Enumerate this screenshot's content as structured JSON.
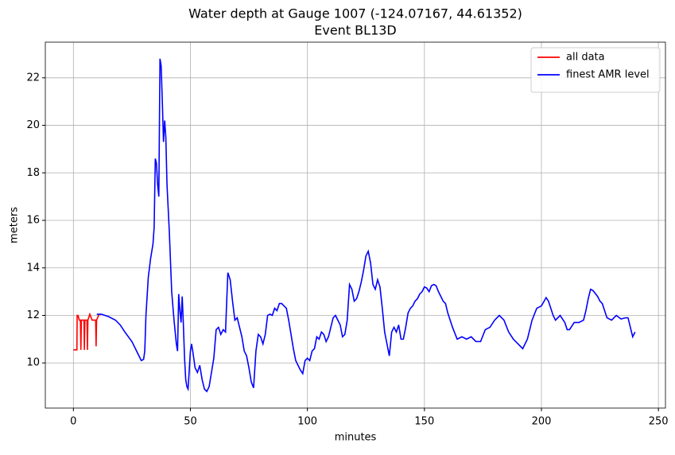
{
  "chart_data": {
    "type": "line",
    "title": "Water depth at Gauge 1007 (-124.07167, 44.61352)",
    "subtitle": "Event BL13D",
    "x_label": "minutes",
    "y_label": "meters",
    "xlim": [
      -12,
      253
    ],
    "ylim": [
      8.1,
      23.5
    ],
    "xticks": [
      0,
      50,
      100,
      150,
      200,
      250
    ],
    "yticks": [
      10,
      12,
      14,
      16,
      18,
      20,
      22
    ],
    "grid": true,
    "legend": "upper right",
    "series": [
      {
        "name": "all data",
        "color": "#ff0000",
        "x": [
          0,
          1,
          1.5,
          1.6,
          2,
          2.5,
          3,
          3.2,
          3.4,
          4.5,
          4.7,
          4.9,
          5.8,
          6,
          6.2,
          7,
          8,
          9.5,
          9.7,
          9.9,
          11
        ],
        "values": [
          10.55,
          10.55,
          10.55,
          12.0,
          12.0,
          11.8,
          11.8,
          10.55,
          11.8,
          11.8,
          10.55,
          11.8,
          11.8,
          10.55,
          11.8,
          12.05,
          11.8,
          11.8,
          10.7,
          11.8,
          12.05
        ]
      },
      {
        "name": "finest AMR level",
        "color": "#0000ff",
        "x": [
          10,
          12,
          15,
          18,
          20,
          22,
          25,
          28,
          29,
          30,
          30.5,
          31,
          32,
          33,
          34,
          34.5,
          35,
          35.5,
          36,
          36.5,
          37,
          37.5,
          38,
          38.5,
          39,
          39.5,
          40,
          41,
          42,
          43,
          44,
          44.5,
          45,
          45.5,
          46,
          46.5,
          47,
          47.5,
          48,
          48.5,
          49,
          50,
          50.5,
          51,
          52,
          53,
          54,
          55,
          56,
          57,
          58,
          59,
          60,
          61,
          62,
          63,
          64,
          65,
          66,
          67,
          68,
          69,
          70,
          71,
          72,
          73,
          74,
          75,
          76,
          77,
          78,
          79,
          80,
          81,
          82,
          83,
          84,
          85,
          86,
          87,
          88,
          89,
          90,
          91,
          92,
          93,
          94,
          95,
          96,
          97,
          98,
          99,
          100,
          101,
          102,
          103,
          104,
          105,
          106,
          107,
          108,
          109,
          110,
          111,
          112,
          113,
          114,
          115,
          116,
          117,
          118,
          119,
          120,
          121,
          122,
          123,
          124,
          125,
          126,
          127,
          128,
          129,
          130,
          131,
          132,
          133,
          134,
          135,
          136,
          137,
          138,
          139,
          140,
          141,
          142,
          143,
          144,
          145,
          146,
          147,
          148,
          149,
          150,
          151,
          152,
          153,
          154,
          155,
          156,
          157,
          158,
          159,
          160,
          162,
          164,
          166,
          168,
          170,
          172,
          174,
          176,
          178,
          180,
          182,
          184,
          186,
          188,
          190,
          192,
          194,
          196,
          198,
          200,
          202,
          203,
          205,
          206,
          208,
          210,
          211,
          212,
          214,
          216,
          218,
          219,
          220,
          221,
          222,
          224,
          225,
          226,
          227,
          228,
          230,
          231,
          232,
          234,
          236,
          237,
          238,
          239,
          240
        ],
        "values": [
          12.05,
          12.05,
          11.95,
          11.8,
          11.6,
          11.3,
          10.9,
          10.3,
          10.1,
          10.15,
          10.5,
          12,
          13.6,
          14.4,
          15,
          15.7,
          18.6,
          18.4,
          17.5,
          17,
          22.8,
          22.5,
          21,
          19.3,
          20.2,
          19.5,
          17.5,
          15.5,
          13,
          11.8,
          10.8,
          10.5,
          12.9,
          12.2,
          11.7,
          12.8,
          11.6,
          10.2,
          9.3,
          9,
          8.9,
          10.5,
          10.8,
          10.5,
          9.8,
          9.6,
          9.9,
          9.3,
          8.9,
          8.8,
          9.0,
          9.6,
          10.2,
          11.4,
          11.5,
          11.2,
          11.4,
          11.3,
          13.8,
          13.5,
          12.6,
          11.8,
          11.9,
          11.5,
          11.1,
          10.5,
          10.3,
          9.8,
          9.2,
          8.95,
          10.5,
          11.2,
          11.1,
          10.8,
          11.2,
          12.0,
          12.05,
          12.0,
          12.3,
          12.2,
          12.5,
          12.5,
          12.4,
          12.3,
          11.8,
          11.2,
          10.6,
          10.1,
          9.9,
          9.7,
          9.55,
          10.1,
          10.2,
          10.1,
          10.5,
          10.6,
          11.1,
          11.0,
          11.3,
          11.2,
          10.9,
          11.1,
          11.5,
          11.9,
          12.0,
          11.8,
          11.6,
          11.1,
          11.2,
          11.8,
          13.3,
          13.1,
          12.6,
          12.7,
          13.0,
          13.4,
          13.9,
          14.5,
          14.7,
          14.2,
          13.3,
          13.1,
          13.5,
          13.2,
          12.3,
          11.3,
          10.8,
          10.3,
          11.3,
          11.5,
          11.3,
          11.6,
          11.0,
          11.0,
          11.5,
          12.1,
          12.3,
          12.4,
          12.6,
          12.7,
          12.9,
          13.0,
          13.2,
          13.15,
          13.0,
          13.25,
          13.3,
          13.25,
          13.0,
          12.8,
          12.6,
          12.5,
          12.1,
          11.5,
          11.0,
          11.1,
          11.0,
          11.1,
          10.9,
          10.9,
          11.4,
          11.5,
          11.8,
          12.0,
          11.8,
          11.3,
          11.0,
          10.8,
          10.6,
          11.0,
          11.8,
          12.3,
          12.4,
          12.75,
          12.6,
          12.0,
          11.8,
          12.0,
          11.7,
          11.4,
          11.4,
          11.7,
          11.7,
          11.8,
          12.2,
          12.7,
          13.1,
          13.05,
          12.8,
          12.6,
          12.5,
          12.2,
          11.9,
          11.8,
          11.9,
          12.0,
          11.85,
          11.9,
          11.9,
          11.5,
          11.1,
          11.3
        ]
      }
    ]
  }
}
